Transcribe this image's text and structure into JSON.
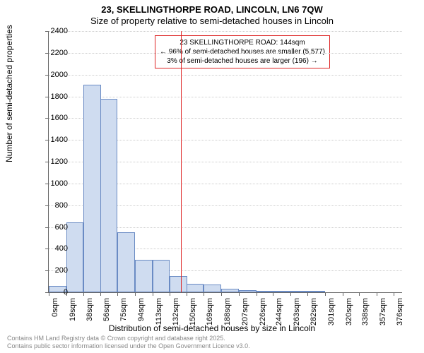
{
  "title": "23, SKELLINGTHORPE ROAD, LINCOLN, LN6 7QW",
  "subtitle": "Size of property relative to semi-detached houses in Lincoln",
  "ylabel": "Number of semi-detached properties",
  "xlabel": "Distribution of semi-detached houses by size in Lincoln",
  "footer_line1": "Contains HM Land Registry data © Crown copyright and database right 2025.",
  "footer_line2": "Contains public sector information licensed under the Open Government Licence v3.0.",
  "annotation": {
    "line1": "23 SKELLINGTHORPE ROAD: 144sqm",
    "line2": "← 96% of semi-detached houses are smaller (5,577)",
    "line3": "3% of semi-detached houses are larger (196) →"
  },
  "chart": {
    "type": "histogram",
    "background_color": "#ffffff",
    "grid_color": "#cccccc",
    "bar_fill": "#cfdcf0",
    "bar_border": "#6a8bc4",
    "marker_color": "#d22",
    "marker_x": 144,
    "ylim": [
      0,
      2400
    ],
    "ytick_step": 200,
    "xticks": [
      0,
      19,
      38,
      56,
      75,
      94,
      113,
      132,
      150,
      169,
      188,
      207,
      226,
      244,
      263,
      282,
      301,
      320,
      338,
      357,
      376
    ],
    "xtick_suffix": "sqm",
    "x_min": 0,
    "x_max": 385,
    "bar_width_units": 19,
    "values": [
      60,
      640,
      1910,
      1780,
      550,
      300,
      300,
      150,
      80,
      70,
      30,
      20,
      15,
      5,
      5,
      5,
      0,
      0,
      0,
      0
    ],
    "title_fontsize": 13,
    "label_fontsize": 12,
    "tick_fontsize": 11,
    "annotation_fontsize": 10,
    "footer_fontsize": 9,
    "footer_color": "#888888"
  }
}
